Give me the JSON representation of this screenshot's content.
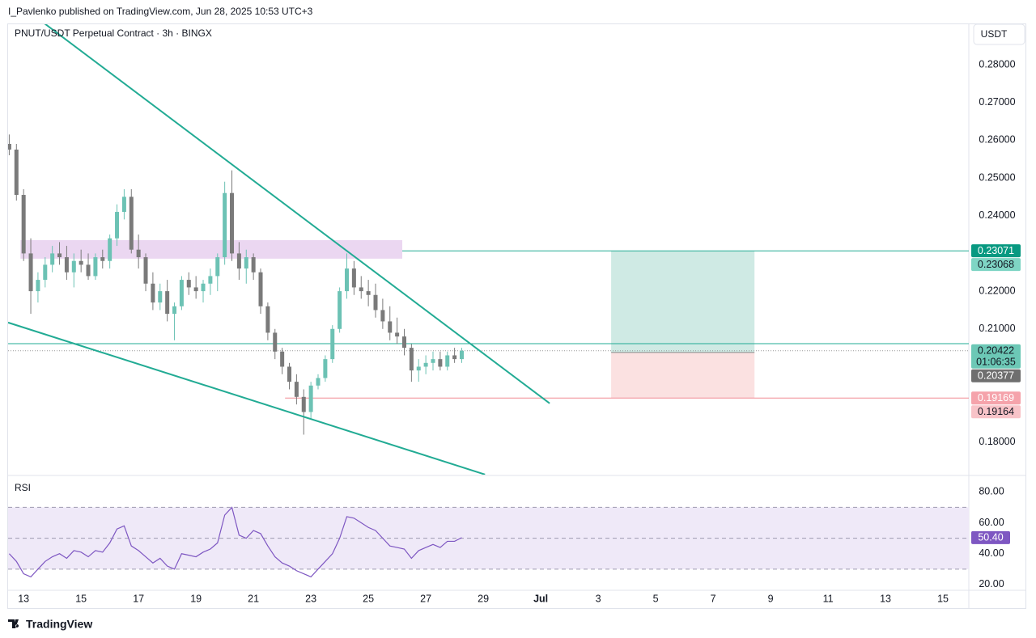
{
  "header": {
    "text": "I_Pavlenko published on TradingView.com, Jun 28, 2025 10:53 UTC+3"
  },
  "footer": {
    "logo": "TradingView"
  },
  "chart_data": {
    "type": "candlestick",
    "title": "PNUT/USDT Perpetual Contract · 3h · BINGX",
    "currency": "USDT",
    "up_color": "#6cc2b4",
    "down_color": "#7a7a7a",
    "line_color": "#22ab94",
    "x": [
      12.5,
      12.75,
      13,
      13.25,
      13.5,
      13.75,
      14,
      14.25,
      14.5,
      14.75,
      15,
      15.25,
      15.5,
      15.75,
      16,
      16.25,
      16.5,
      16.75,
      17,
      17.25,
      17.5,
      17.75,
      18,
      18.25,
      18.5,
      18.75,
      19,
      19.25,
      19.5,
      19.75,
      20,
      20.25,
      20.5,
      20.75,
      21,
      21.25,
      21.5,
      21.75,
      22,
      22.25,
      22.5,
      22.75,
      23,
      23.25,
      23.5,
      23.75,
      24,
      24.25,
      24.5,
      24.75,
      25,
      25.25,
      25.5,
      25.75,
      26,
      26.25,
      26.5,
      26.75,
      27,
      27.25,
      27.5,
      27.75,
      28,
      28.25
    ],
    "open": [
      0.259,
      0.2575,
      0.2455,
      0.23,
      0.22,
      0.223,
      0.227,
      0.23,
      0.229,
      0.225,
      0.228,
      0.227,
      0.224,
      0.229,
      0.228,
      0.234,
      0.241,
      0.245,
      0.231,
      0.229,
      0.222,
      0.217,
      0.22,
      0.214,
      0.216,
      0.223,
      0.221,
      0.22,
      0.222,
      0.224,
      0.229,
      0.246,
      0.23,
      0.226,
      0.229,
      0.225,
      0.216,
      0.209,
      0.204,
      0.2,
      0.196,
      0.192,
      0.188,
      0.195,
      0.197,
      0.202,
      0.21,
      0.22,
      0.226,
      0.221,
      0.22,
      0.219,
      0.215,
      0.212,
      0.209,
      0.208,
      0.205,
      0.199,
      0.2,
      0.201,
      0.202,
      0.2,
      0.203,
      0.202
    ],
    "high": [
      0.2615,
      0.259,
      0.247,
      0.234,
      0.225,
      0.229,
      0.232,
      0.233,
      0.232,
      0.23,
      0.231,
      0.23,
      0.23,
      0.231,
      0.235,
      0.243,
      0.247,
      0.247,
      0.235,
      0.23,
      0.225,
      0.222,
      0.223,
      0.217,
      0.224,
      0.225,
      0.224,
      0.223,
      0.226,
      0.23,
      0.249,
      0.252,
      0.233,
      0.231,
      0.23,
      0.226,
      0.217,
      0.21,
      0.205,
      0.201,
      0.198,
      0.194,
      0.196,
      0.198,
      0.203,
      0.211,
      0.221,
      0.23,
      0.228,
      0.224,
      0.223,
      0.222,
      0.218,
      0.216,
      0.213,
      0.21,
      0.206,
      0.202,
      0.203,
      0.204,
      0.204,
      0.204,
      0.205,
      0.205
    ],
    "low": [
      0.256,
      0.244,
      0.228,
      0.214,
      0.217,
      0.221,
      0.225,
      0.227,
      0.223,
      0.221,
      0.225,
      0.223,
      0.223,
      0.226,
      0.226,
      0.232,
      0.239,
      0.23,
      0.226,
      0.22,
      0.215,
      0.215,
      0.212,
      0.207,
      0.215,
      0.219,
      0.218,
      0.217,
      0.219,
      0.22,
      0.227,
      0.228,
      0.223,
      0.222,
      0.223,
      0.214,
      0.207,
      0.202,
      0.198,
      0.194,
      0.19,
      0.182,
      0.186,
      0.194,
      0.196,
      0.201,
      0.209,
      0.218,
      0.219,
      0.218,
      0.216,
      0.213,
      0.21,
      0.207,
      0.206,
      0.203,
      0.196,
      0.196,
      0.198,
      0.199,
      0.199,
      0.199,
      0.201,
      0.201
    ],
    "close": [
      0.2575,
      0.2455,
      0.23,
      0.22,
      0.223,
      0.227,
      0.23,
      0.229,
      0.225,
      0.228,
      0.227,
      0.224,
      0.229,
      0.228,
      0.234,
      0.241,
      0.245,
      0.231,
      0.229,
      0.222,
      0.217,
      0.22,
      0.214,
      0.216,
      0.223,
      0.221,
      0.22,
      0.222,
      0.224,
      0.229,
      0.246,
      0.23,
      0.226,
      0.229,
      0.225,
      0.216,
      0.209,
      0.204,
      0.2,
      0.196,
      0.192,
      0.188,
      0.195,
      0.197,
      0.202,
      0.21,
      0.22,
      0.226,
      0.221,
      0.22,
      0.219,
      0.215,
      0.212,
      0.209,
      0.208,
      0.205,
      0.199,
      0.2,
      0.201,
      0.202,
      0.2,
      0.203,
      0.202,
      0.20422
    ],
    "xlim": [
      12.46,
      45.9
    ],
    "xticks": [
      13,
      15,
      17,
      19,
      21,
      23,
      25,
      27,
      29,
      {
        "value": 31,
        "label": "Jul"
      },
      {
        "value": 33,
        "label": "3"
      },
      {
        "value": 35,
        "label": "5"
      },
      {
        "value": 37,
        "label": "7"
      },
      {
        "value": 39,
        "label": "9"
      },
      {
        "value": 41,
        "label": "11"
      },
      {
        "value": 43,
        "label": "13"
      },
      {
        "value": 45,
        "label": "15"
      }
    ],
    "ylim": [
      0.1714,
      0.2907
    ],
    "yticks": [
      {
        "value": 0.28,
        "label": "0.28000"
      },
      {
        "value": 0.27,
        "label": "0.27000"
      },
      {
        "value": 0.26,
        "label": "0.26000"
      },
      {
        "value": 0.25,
        "label": "0.25000"
      },
      {
        "value": 0.24,
        "label": "0.24000"
      },
      {
        "value": 0.22,
        "label": "0.22000"
      },
      {
        "value": 0.21,
        "label": "0.21000"
      },
      {
        "value": 0.18,
        "label": "0.18000"
      }
    ],
    "trendlines": [
      {
        "x": [
          13.65,
          31.31
        ],
        "y": [
          0.29135,
          0.19028
        ]
      },
      {
        "x": [
          12.46,
          29.06
        ],
        "y": [
          0.21169,
          0.17144
        ]
      }
    ],
    "zone": {
      "x": [
        12.89,
        26.18
      ],
      "y": [
        0.22861,
        0.23353
      ],
      "color": "#ebd7f1"
    },
    "hlines": [
      {
        "value": 0.23068,
        "from": 26.18,
        "color": "#22ab94"
      },
      {
        "value": 0.2061,
        "from": 12.46,
        "color": "#22ab94"
      },
      {
        "value": 0.19169,
        "from": 22.1,
        "color": "#f08a94"
      }
    ],
    "last_price": 0.20422,
    "position": {
      "x": [
        33.45,
        38.44
      ],
      "entry": 0.20377,
      "target": 0.23068,
      "stop": 0.19169,
      "profit_color": "#cfeae4",
      "loss_color": "#fbe1e1"
    },
    "price_tags": [
      {
        "value": 0.23071,
        "color": "#089981",
        "text_color": "#ffffff"
      },
      {
        "value": 0.23068,
        "color": "#7fd5c4",
        "text_color": "#131722"
      },
      {
        "value": 0.20422,
        "sub": "01:06:35",
        "color": "#6cc8b6",
        "text_color": "#131722"
      },
      {
        "value": 0.20377,
        "color": "#6f6f6f",
        "text_color": "#ffffff"
      },
      {
        "value": 0.19169,
        "color": "#f5a3ab",
        "text_color": "#ffffff"
      },
      {
        "value": 0.19164,
        "color": "#f8c3c8",
        "text_color": "#131722"
      }
    ],
    "rsi": {
      "type": "line",
      "name": "RSI",
      "color": "#7e57c2",
      "band_color": "#efe9f8",
      "values": [
        40,
        35,
        27,
        25,
        30,
        35,
        38,
        40,
        37,
        42,
        41,
        38,
        42,
        41,
        47,
        56,
        58,
        45,
        42,
        38,
        34,
        37,
        32,
        30,
        40,
        39,
        38,
        41,
        43,
        47,
        65,
        70,
        52,
        50,
        55,
        53,
        45,
        38,
        34,
        32,
        29,
        27,
        25,
        30,
        35,
        40,
        50,
        64,
        63,
        60,
        57,
        55,
        50,
        45,
        44,
        43,
        37,
        42,
        44,
        46,
        44,
        48,
        48,
        50.4
      ],
      "ylim": [
        16.3,
        89.6
      ],
      "yticks": [
        {
          "value": 80,
          "label": "80.00"
        },
        {
          "value": 60,
          "label": "60.00"
        },
        {
          "value": 40,
          "label": "40.00"
        },
        {
          "value": 20,
          "label": "20.00"
        }
      ],
      "levels": [
        70,
        50,
        30
      ],
      "last": {
        "value": 50.4,
        "label": "50.40"
      }
    }
  }
}
